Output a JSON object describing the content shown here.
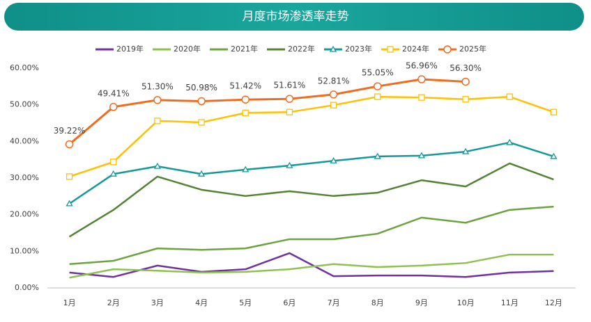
{
  "chart_data": {
    "type": "line",
    "title": "月度市场渗透率走势",
    "categories": [
      "1月",
      "2月",
      "3月",
      "4月",
      "5月",
      "6月",
      "7月",
      "8月",
      "9月",
      "10月",
      "11月",
      "12月"
    ],
    "ylim": [
      0,
      60
    ],
    "yticks": [
      {
        "value": 0,
        "label": "0.00%"
      },
      {
        "value": 10,
        "label": "10.00%"
      },
      {
        "value": 20,
        "label": "20.00%"
      },
      {
        "value": 30,
        "label": "30.00%"
      },
      {
        "value": 40,
        "label": "40.00%"
      },
      {
        "value": 50,
        "label": "50.00%"
      },
      {
        "value": 60,
        "label": "60.00%"
      }
    ],
    "grid": false,
    "series": [
      {
        "name": "2019年",
        "color": "#7030a0",
        "values": [
          4.2,
          3.0,
          6.1,
          4.4,
          5.1,
          9.5,
          3.2,
          3.4,
          3.4,
          3.0,
          4.2,
          4.6
        ]
      },
      {
        "name": "2020年",
        "color": "#8fc152",
        "values": [
          2.8,
          5.1,
          4.7,
          4.2,
          4.4,
          5.1,
          6.5,
          5.7,
          6.1,
          6.8,
          9.1,
          9.1
        ]
      },
      {
        "name": "2021年",
        "color": "#6aa33f",
        "values": [
          6.5,
          7.4,
          10.8,
          10.4,
          10.8,
          13.3,
          13.3,
          14.8,
          19.2,
          17.8,
          21.3,
          22.2
        ]
      },
      {
        "name": "2022年",
        "color": "#548235",
        "values": [
          14.0,
          21.3,
          30.4,
          26.8,
          25.1,
          26.4,
          25.1,
          26.0,
          29.4,
          27.7,
          34.0,
          29.6
        ]
      },
      {
        "name": "2023年",
        "color": "#13999a",
        "marker": "triangle",
        "values": [
          23.0,
          31.1,
          33.2,
          31.1,
          32.3,
          33.4,
          34.7,
          35.9,
          36.1,
          37.2,
          39.7,
          35.9
        ]
      },
      {
        "name": "2024年",
        "color": "#ffc000",
        "marker": "square",
        "values": [
          30.4,
          34.4,
          45.6,
          45.2,
          47.8,
          48.0,
          49.9,
          52.2,
          52.0,
          51.5,
          52.2,
          48.0
        ]
      },
      {
        "name": "2025年",
        "color": "#f26b1d",
        "marker": "circle",
        "values": [
          39.22,
          49.41,
          51.3,
          50.98,
          51.42,
          51.61,
          52.81,
          55.05,
          56.96,
          56.3,
          null,
          null
        ],
        "value_labels": [
          "39.22%",
          "49.41%",
          "51.30%",
          "50.98%",
          "51.42%",
          "51.61%",
          "52.81%",
          "55.05%",
          "56.96%",
          "56.30%",
          null,
          null
        ]
      }
    ]
  }
}
